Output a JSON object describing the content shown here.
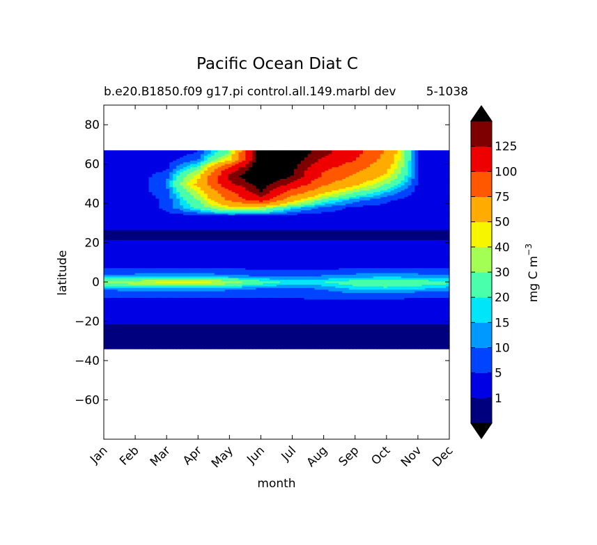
{
  "chart_data": {
    "type": "heatmap",
    "title": "Pacific Ocean Diat C",
    "subtitle_left": "b.e20.B1850.f09 g17.pi control.all.149.marbl dev",
    "subtitle_right": "5-1038",
    "xlabel": "month",
    "ylabel": "latitude",
    "x_ticks": [
      "Jan",
      "Feb",
      "Mar",
      "Apr",
      "May",
      "Jun",
      "Jul",
      "Aug",
      "Sep",
      "Oct",
      "Nov",
      "Dec"
    ],
    "y_ticks": [
      80,
      60,
      40,
      20,
      0,
      -20,
      -40,
      -60
    ],
    "xlim": [
      0,
      11
    ],
    "ylim": [
      -80,
      90
    ],
    "data_lat_range": [
      -34,
      67
    ],
    "colorbar": {
      "label": "mg C m",
      "label_superscript": "−3",
      "levels": [
        1,
        5,
        10,
        15,
        20,
        30,
        40,
        50,
        75,
        100,
        125
      ],
      "colors": [
        "#00007f",
        "#0000e4",
        "#0044ff",
        "#0099ff",
        "#00e5f8",
        "#4affac",
        "#a3ff53",
        "#f8f500",
        "#ffab00",
        "#ff5800",
        "#ef0000",
        "#7f0000"
      ],
      "under_color": "#000000",
      "over_color": "#000000",
      "extend": "both"
    },
    "field": {
      "lat": [
        -34,
        -30,
        -26,
        -22,
        -18,
        -14,
        -10,
        -6,
        -3,
        0,
        3,
        6,
        10,
        14,
        18,
        22,
        26,
        30,
        34,
        38,
        42,
        46,
        50,
        54,
        58,
        62,
        66
      ],
      "month": [
        0,
        1,
        2,
        3,
        4,
        5,
        6,
        7,
        8,
        9,
        10,
        11
      ],
      "values": [
        [
          0.5,
          0.5,
          0.5,
          0.5,
          0.5,
          0.5,
          0.5,
          0.5,
          0.5,
          0.5,
          0.5,
          0.5
        ],
        [
          0.6,
          0.6,
          0.6,
          0.6,
          0.6,
          0.6,
          0.6,
          0.6,
          0.6,
          0.6,
          0.6,
          0.6
        ],
        [
          0.7,
          0.7,
          0.7,
          0.7,
          0.7,
          0.7,
          0.7,
          0.7,
          0.7,
          0.7,
          0.7,
          0.7
        ],
        [
          0.8,
          0.8,
          0.8,
          0.8,
          0.8,
          0.8,
          0.8,
          0.8,
          0.8,
          0.8,
          0.8,
          0.8
        ],
        [
          2,
          2,
          2,
          2,
          2,
          2,
          2,
          2,
          2,
          2,
          2,
          2
        ],
        [
          3,
          3,
          3,
          3,
          3,
          3,
          3,
          3,
          3,
          3,
          3,
          3
        ],
        [
          4,
          4,
          4,
          4,
          4,
          4,
          4,
          4,
          4,
          4,
          4,
          4
        ],
        [
          6,
          6,
          6,
          6,
          6,
          6,
          6,
          7,
          8,
          7,
          6,
          6
        ],
        [
          12,
          13,
          14,
          14,
          12,
          10,
          9,
          11,
          17,
          19,
          17,
          13
        ],
        [
          35,
          36,
          43,
          44,
          35,
          24,
          18,
          20,
          24,
          25,
          24,
          22
        ],
        [
          12,
          13,
          14,
          14,
          12,
          10,
          9,
          11,
          13,
          14,
          13,
          12
        ],
        [
          6,
          6,
          6,
          6,
          6,
          5,
          5,
          5,
          6,
          6,
          6,
          6
        ],
        [
          3,
          3,
          3,
          3,
          3,
          3,
          3,
          3,
          3,
          3,
          3,
          3
        ],
        [
          2,
          2,
          2,
          2,
          2,
          2,
          2,
          2,
          2,
          2,
          2,
          2
        ],
        [
          2,
          2,
          2,
          2,
          2,
          2,
          2,
          2,
          2,
          2,
          2,
          2
        ],
        [
          0.8,
          0.8,
          0.8,
          0.8,
          0.8,
          0.8,
          0.8,
          0.8,
          0.8,
          0.8,
          0.8,
          0.8
        ],
        [
          0.7,
          0.7,
          0.7,
          0.7,
          0.7,
          0.7,
          0.7,
          0.7,
          0.7,
          0.7,
          0.7,
          0.7
        ],
        [
          2,
          2,
          2,
          2,
          2,
          2,
          2,
          2,
          2,
          2,
          2,
          2
        ],
        [
          2,
          2,
          3,
          4,
          4,
          4,
          3,
          3,
          3,
          2,
          2,
          2
        ],
        [
          2,
          2,
          6,
          22,
          45,
          40,
          18,
          8,
          4,
          3,
          2,
          2
        ],
        [
          2,
          2,
          6,
          30,
          80,
          115,
          60,
          25,
          12,
          6,
          2,
          2
        ],
        [
          2,
          2,
          8,
          40,
          95,
          140,
          90,
          55,
          30,
          15,
          3,
          2
        ],
        [
          2,
          2,
          10,
          55,
          120,
          150,
          120,
          80,
          55,
          30,
          4,
          2
        ],
        [
          2,
          2,
          8,
          45,
          130,
          160,
          140,
          95,
          70,
          45,
          5,
          2
        ],
        [
          2,
          2,
          4,
          25,
          110,
          160,
          145,
          105,
          85,
          55,
          5,
          2
        ],
        [
          2,
          2,
          3,
          10,
          50,
          160,
          150,
          120,
          100,
          65,
          4,
          2
        ],
        [
          2,
          2,
          2,
          5,
          30,
          160,
          155,
          130,
          110,
          70,
          4,
          2
        ]
      ]
    }
  }
}
